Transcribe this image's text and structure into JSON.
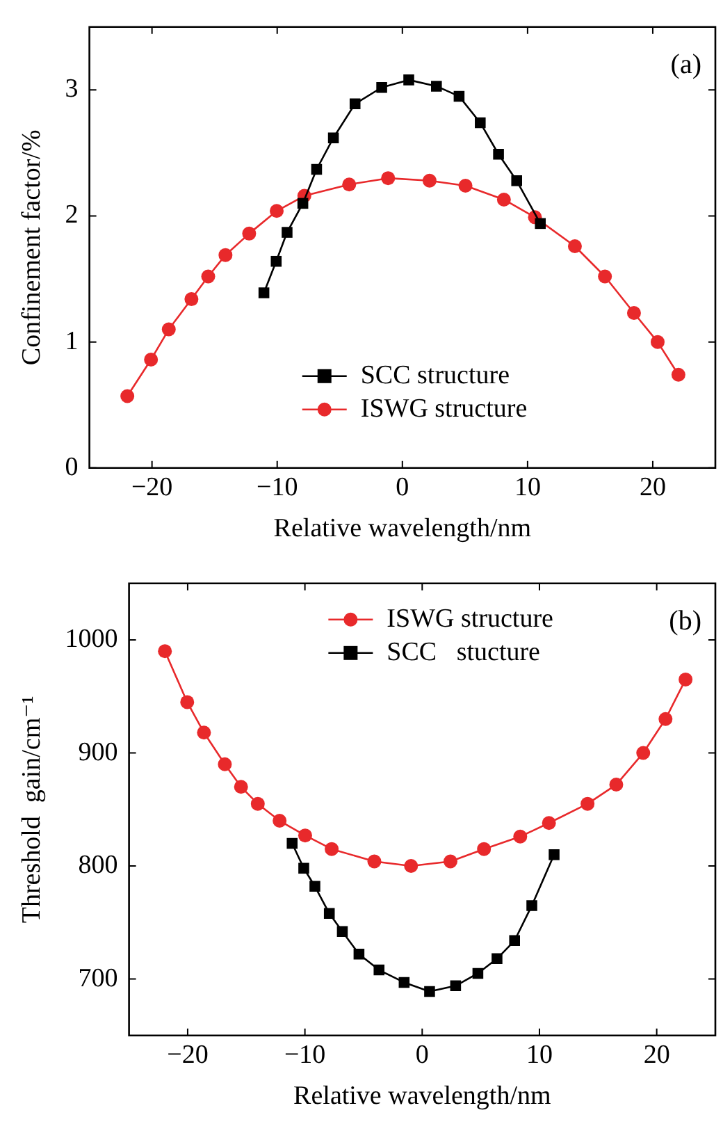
{
  "chart_data": [
    {
      "type": "line",
      "xlabel": "Relative wavelength/nm",
      "ylabel": "Confinement factor/%",
      "annotations": [
        "(a)"
      ],
      "xlim": [
        -25,
        25
      ],
      "ylim": [
        0,
        3.5
      ],
      "xticks": [
        -20,
        -10,
        0,
        10,
        20
      ],
      "yticks": [
        0,
        1,
        2,
        3
      ],
      "legend": "bottom",
      "grid": false,
      "series": [
        {
          "name": "SCC structure",
          "color": "#000000",
          "marker": "square",
          "x": [
            -11.06,
            -10.08,
            -9.21,
            -7.95,
            -6.85,
            -5.51,
            -3.78,
            -1.65,
            0.51,
            2.72,
            4.53,
            6.22,
            7.68,
            9.13,
            11.02
          ],
          "values": [
            1.39,
            1.64,
            1.87,
            2.1,
            2.37,
            2.62,
            2.89,
            3.02,
            3.08,
            3.03,
            2.95,
            2.74,
            2.49,
            2.28,
            1.94
          ]
        },
        {
          "name": "ISWG structure",
          "color": "#e8292b",
          "marker": "circle",
          "x": [
            -21.97,
            -20.08,
            -18.66,
            -16.85,
            -15.51,
            -14.13,
            -12.24,
            -10.04,
            -7.83,
            -4.25,
            -1.14,
            2.17,
            5.04,
            8.11,
            10.59,
            13.78,
            16.18,
            18.5,
            20.39,
            22.05
          ],
          "values": [
            0.57,
            0.86,
            1.1,
            1.34,
            1.52,
            1.69,
            1.86,
            2.04,
            2.16,
            2.25,
            2.3,
            2.28,
            2.24,
            2.13,
            1.99,
            1.76,
            1.52,
            1.23,
            1.0,
            0.74
          ]
        }
      ]
    },
    {
      "type": "line",
      "xlabel": "Relative wavelength/nm",
      "ylabel": "Threshold  gain/cm⁻¹",
      "annotations": [
        "(b)"
      ],
      "xlim": [
        -25,
        25
      ],
      "ylim": [
        650,
        1050
      ],
      "xticks": [
        -20,
        -10,
        0,
        10,
        20
      ],
      "yticks": [
        700,
        800,
        900,
        1000
      ],
      "legend": "top",
      "grid": false,
      "series": [
        {
          "name": "ISWG structure",
          "color": "#e8292b",
          "marker": "circle",
          "x": [
            -21.94,
            -20.04,
            -18.61,
            -16.83,
            -15.45,
            -14.02,
            -12.16,
            -9.98,
            -7.72,
            -4.08,
            -0.95,
            2.41,
            5.27,
            8.36,
            10.81,
            14.1,
            16.55,
            18.85,
            20.75,
            22.46
          ],
          "values": [
            990,
            945,
            918,
            890,
            870,
            855,
            840,
            827,
            815,
            804,
            800,
            804,
            815,
            826,
            838,
            855,
            872,
            900,
            930,
            965
          ]
        },
        {
          "name": "SCC   stucture",
          "color": "#000000",
          "marker": "square",
          "x": [
            -11.09,
            -10.1,
            -9.15,
            -7.92,
            -6.81,
            -5.39,
            -3.68,
            -1.54,
            0.63,
            2.85,
            4.75,
            6.38,
            7.88,
            9.35,
            11.25
          ],
          "values": [
            820,
            798,
            782,
            758,
            742,
            722,
            708,
            697,
            689,
            694,
            705,
            718,
            734,
            765,
            810
          ]
        }
      ]
    }
  ]
}
